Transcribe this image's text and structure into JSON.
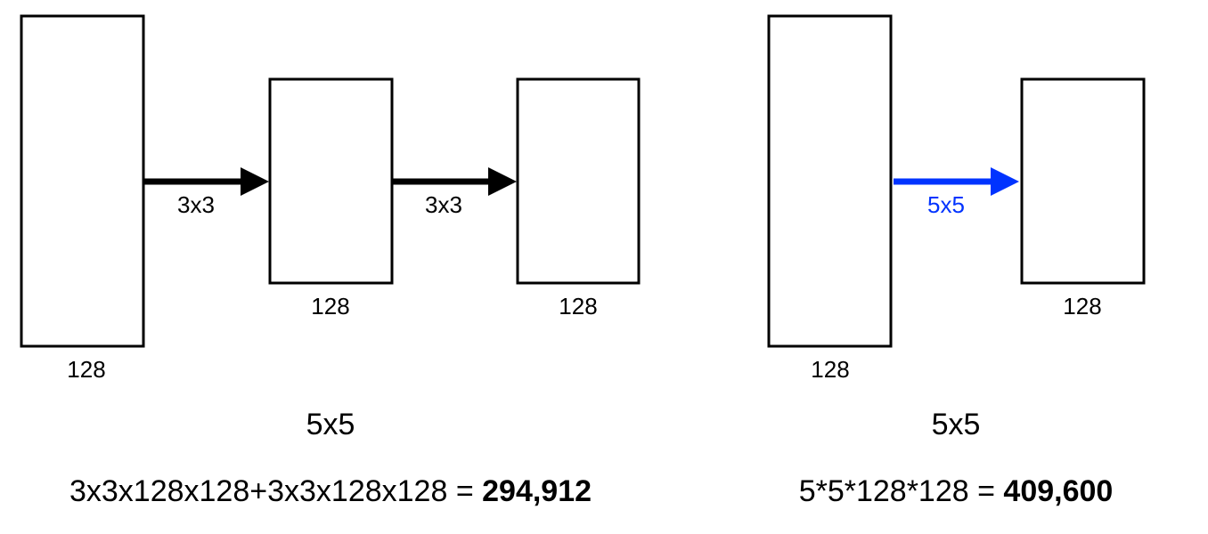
{
  "colors": {
    "stroke": "#000000",
    "arrow_default": "#000000",
    "arrow_highlight": "#0033ff",
    "background": "#ffffff"
  },
  "left": {
    "layers": [
      {
        "channels": "128"
      },
      {
        "channels": "128"
      },
      {
        "channels": "128"
      }
    ],
    "convs": [
      {
        "kernel": "3x3"
      },
      {
        "kernel": "3x3"
      }
    ],
    "receptive_field": "5x5",
    "formula": "3x3x128x128+3x3x128x128 = ",
    "result": "294,912"
  },
  "right": {
    "layers": [
      {
        "channels": "128"
      },
      {
        "channels": "128"
      }
    ],
    "convs": [
      {
        "kernel": "5x5"
      }
    ],
    "receptive_field": "5x5",
    "formula": "5*5*128*128 = ",
    "result": "409,600"
  }
}
